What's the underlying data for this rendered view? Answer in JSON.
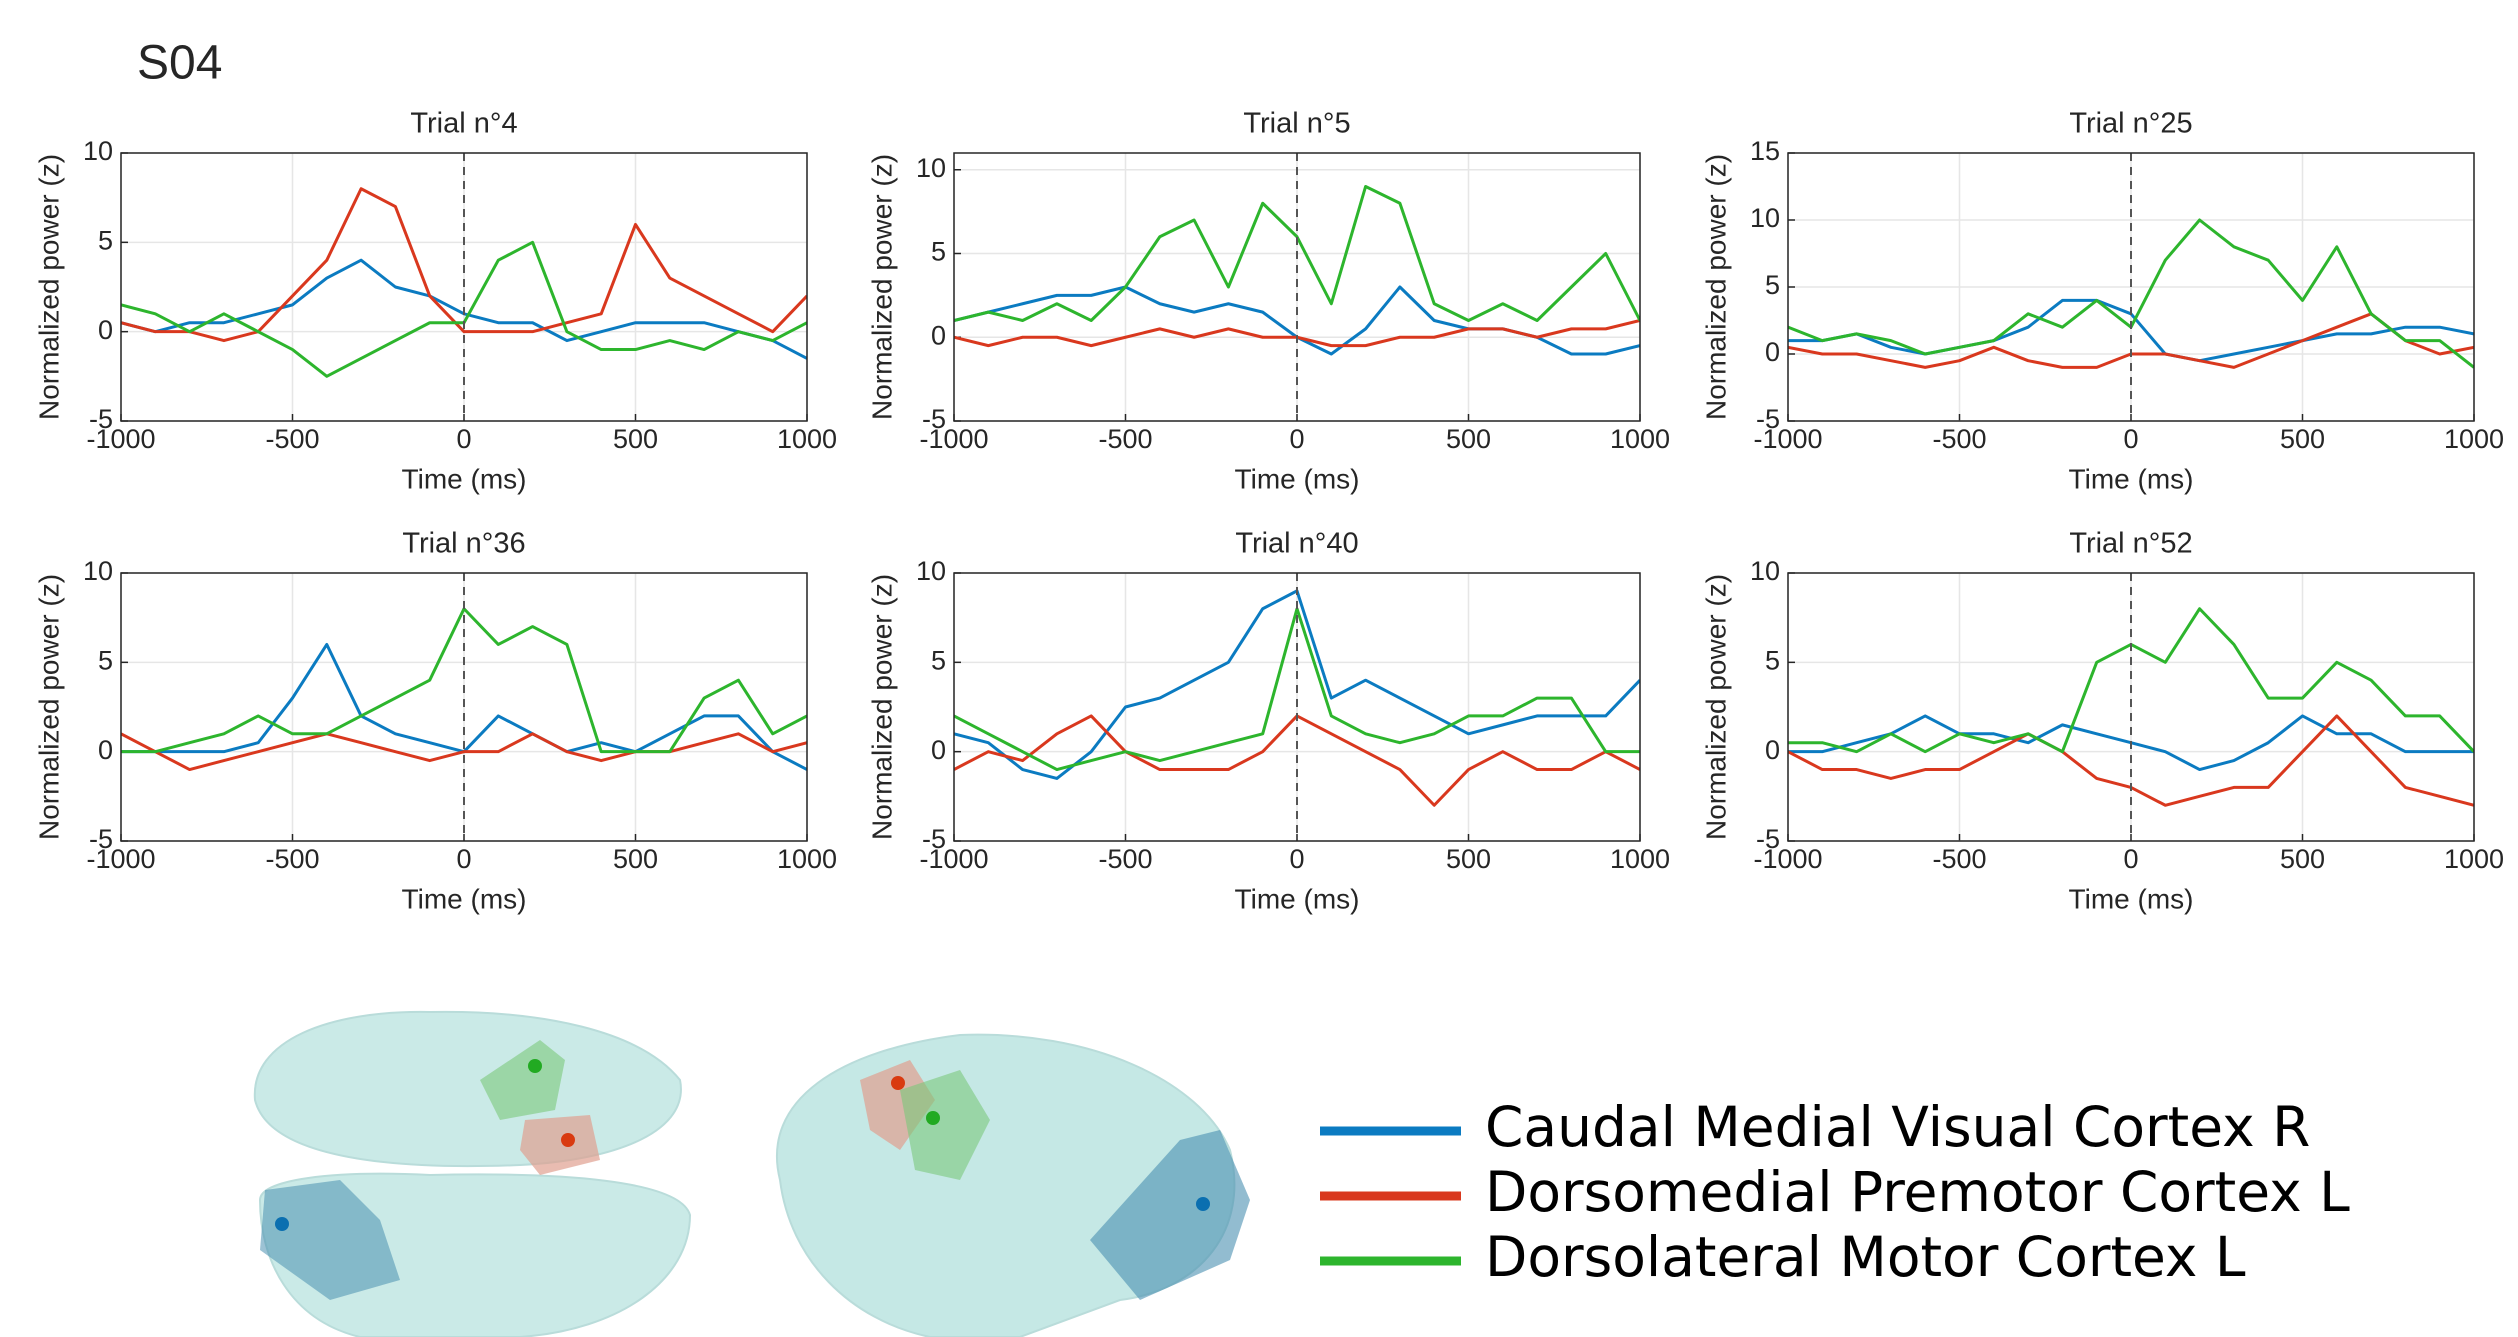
{
  "panel_label": "S04",
  "chart_data": [
    {
      "type": "line",
      "title": "Trial n°4",
      "xlabel": "Time (ms)",
      "ylabel": "Normalized power (z)",
      "x": [
        -1000,
        -900,
        -800,
        -700,
        -600,
        -500,
        -400,
        -300,
        -200,
        -100,
        0,
        100,
        200,
        300,
        400,
        500,
        600,
        700,
        800,
        900,
        1000
      ],
      "xlim": [
        -1000,
        1000
      ],
      "xticks": [
        -1000,
        -500,
        0,
        500,
        1000
      ],
      "ylim": [
        -5,
        10
      ],
      "yticks": [
        -5,
        0,
        5,
        10
      ],
      "grid": true,
      "series": [
        {
          "name": "Caudal Medial Visual Cortex R",
          "color": "#0b7bc1",
          "values": [
            0.5,
            0,
            0.5,
            0.5,
            1,
            1.5,
            3,
            4,
            2.5,
            2,
            1,
            0.5,
            0.5,
            -0.5,
            0,
            0.5,
            0.5,
            0.5,
            0,
            -0.5,
            -1.5
          ]
        },
        {
          "name": "Dorsomedial Premotor Cortex L",
          "color": "#d9381e",
          "values": [
            0.5,
            0,
            0,
            -0.5,
            0,
            2,
            4,
            8,
            7,
            2,
            0,
            0,
            0,
            0.5,
            1,
            6,
            3,
            2,
            1,
            0,
            2
          ]
        },
        {
          "name": "Dorsolateral Motor Cortex L",
          "color": "#2db52d",
          "values": [
            1.5,
            1,
            0,
            1,
            0,
            -1,
            -2.5,
            -1.5,
            -0.5,
            0.5,
            0.5,
            4,
            5,
            0,
            -1,
            -1,
            -0.5,
            -1,
            0,
            -0.5,
            0.5
          ]
        }
      ]
    },
    {
      "type": "line",
      "title": "Trial n°5",
      "xlabel": "Time (ms)",
      "ylabel": "Normalized power (z)",
      "x": [
        -1000,
        -900,
        -800,
        -700,
        -600,
        -500,
        -400,
        -300,
        -200,
        -100,
        0,
        100,
        200,
        300,
        400,
        500,
        600,
        700,
        800,
        900,
        1000
      ],
      "xlim": [
        -1000,
        1000
      ],
      "xticks": [
        -1000,
        -500,
        0,
        500,
        1000
      ],
      "ylim": [
        -5,
        11
      ],
      "yticks": [
        -5,
        0,
        5,
        10
      ],
      "grid": true,
      "series": [
        {
          "color": "#0b7bc1",
          "values": [
            1,
            1.5,
            2,
            2.5,
            2.5,
            3,
            2,
            1.5,
            2,
            1.5,
            0,
            -1,
            0.5,
            3,
            1,
            0.5,
            0.5,
            0,
            -1,
            -1,
            -0.5
          ]
        },
        {
          "color": "#d9381e",
          "values": [
            0,
            -0.5,
            0,
            0,
            -0.5,
            0,
            0.5,
            0,
            0.5,
            0,
            0,
            -0.5,
            -0.5,
            0,
            0,
            0.5,
            0.5,
            0,
            0.5,
            0.5,
            1
          ]
        },
        {
          "color": "#2db52d",
          "values": [
            1,
            1.5,
            1,
            2,
            1,
            3,
            6,
            7,
            3,
            8,
            6,
            2,
            9,
            8,
            2,
            1,
            2,
            1,
            3,
            5,
            1
          ]
        }
      ]
    },
    {
      "type": "line",
      "title": "Trial n°25",
      "xlabel": "Time (ms)",
      "ylabel": "Normalized power (z)",
      "x": [
        -1000,
        -900,
        -800,
        -700,
        -600,
        -500,
        -400,
        -300,
        -200,
        -100,
        0,
        100,
        200,
        300,
        400,
        500,
        600,
        700,
        800,
        900,
        1000
      ],
      "xlim": [
        -1000,
        1000
      ],
      "xticks": [
        -1000,
        -500,
        0,
        500,
        1000
      ],
      "ylim": [
        -5,
        15
      ],
      "yticks": [
        -5,
        0,
        5,
        10,
        15
      ],
      "grid": true,
      "series": [
        {
          "color": "#0b7bc1",
          "values": [
            1,
            1,
            1.5,
            0.5,
            0,
            0.5,
            1,
            2,
            4,
            4,
            3,
            0,
            -0.5,
            0,
            0.5,
            1,
            1.5,
            1.5,
            2,
            2,
            1.5
          ]
        },
        {
          "color": "#d9381e",
          "values": [
            0.5,
            0,
            0,
            -0.5,
            -1,
            -0.5,
            0.5,
            -0.5,
            -1,
            -1,
            0,
            0,
            -0.5,
            -1,
            0,
            1,
            2,
            3,
            1,
            0,
            0.5
          ]
        },
        {
          "color": "#2db52d",
          "values": [
            2,
            1,
            1.5,
            1,
            0,
            0.5,
            1,
            3,
            2,
            4,
            2,
            7,
            10,
            8,
            7,
            4,
            8,
            3,
            1,
            1,
            -1
          ]
        }
      ]
    },
    {
      "type": "line",
      "title": "Trial n°36",
      "xlabel": "Time (ms)",
      "ylabel": "Normalized power (z)",
      "x": [
        -1000,
        -900,
        -800,
        -700,
        -600,
        -500,
        -400,
        -300,
        -200,
        -100,
        0,
        100,
        200,
        300,
        400,
        500,
        600,
        700,
        800,
        900,
        1000
      ],
      "xlim": [
        -1000,
        1000
      ],
      "xticks": [
        -1000,
        -500,
        0,
        500,
        1000
      ],
      "ylim": [
        -5,
        10
      ],
      "yticks": [
        -5,
        0,
        5,
        10
      ],
      "grid": true,
      "series": [
        {
          "color": "#0b7bc1",
          "values": [
            0,
            0,
            0,
            0,
            0.5,
            3,
            6,
            2,
            1,
            0.5,
            0,
            2,
            1,
            0,
            0.5,
            0,
            1,
            2,
            2,
            0,
            -1
          ]
        },
        {
          "color": "#d9381e",
          "values": [
            1,
            0,
            -1,
            -0.5,
            0,
            0.5,
            1,
            0.5,
            0,
            -0.5,
            0,
            0,
            1,
            0,
            -0.5,
            0,
            0,
            0.5,
            1,
            0,
            0.5
          ]
        },
        {
          "color": "#2db52d",
          "values": [
            0,
            0,
            0.5,
            1,
            2,
            1,
            1,
            2,
            3,
            4,
            8,
            6,
            7,
            6,
            0,
            0,
            0,
            3,
            4,
            1,
            2
          ]
        }
      ]
    },
    {
      "type": "line",
      "title": "Trial n°40",
      "xlabel": "Time (ms)",
      "ylabel": "Normalized power (z)",
      "x": [
        -1000,
        -900,
        -800,
        -700,
        -600,
        -500,
        -400,
        -300,
        -200,
        -100,
        0,
        100,
        200,
        300,
        400,
        500,
        600,
        700,
        800,
        900,
        1000
      ],
      "xlim": [
        -1000,
        1000
      ],
      "xticks": [
        -1000,
        -500,
        0,
        500,
        1000
      ],
      "ylim": [
        -5,
        10
      ],
      "yticks": [
        -5,
        0,
        5,
        10
      ],
      "grid": true,
      "series": [
        {
          "color": "#0b7bc1",
          "values": [
            1,
            0.5,
            -1,
            -1.5,
            0,
            2.5,
            3,
            4,
            5,
            8,
            9,
            3,
            4,
            3,
            2,
            1,
            1.5,
            2,
            2,
            2,
            4
          ]
        },
        {
          "color": "#d9381e",
          "values": [
            -1,
            0,
            -0.5,
            1,
            2,
            0,
            -1,
            -1,
            -1,
            0,
            2,
            1,
            0,
            -1,
            -3,
            -1,
            0,
            -1,
            -1,
            0,
            -1
          ]
        },
        {
          "color": "#2db52d",
          "values": [
            2,
            1,
            0,
            -1,
            -0.5,
            0,
            -0.5,
            0,
            0.5,
            1,
            8,
            2,
            1,
            0.5,
            1,
            2,
            2,
            3,
            3,
            0,
            0
          ]
        }
      ]
    },
    {
      "type": "line",
      "title": "Trial n°52",
      "xlabel": "Time (ms)",
      "ylabel": "Normalized power (z)",
      "x": [
        -1000,
        -900,
        -800,
        -700,
        -600,
        -500,
        -400,
        -300,
        -200,
        -100,
        0,
        100,
        200,
        300,
        400,
        500,
        600,
        700,
        800,
        900,
        1000
      ],
      "xlim": [
        -1000,
        1000
      ],
      "xticks": [
        -1000,
        -500,
        0,
        500,
        1000
      ],
      "ylim": [
        -5,
        10
      ],
      "yticks": [
        -5,
        0,
        5,
        10
      ],
      "grid": true,
      "series": [
        {
          "color": "#0b7bc1",
          "values": [
            0,
            0,
            0.5,
            1,
            2,
            1,
            1,
            0.5,
            1.5,
            1,
            0.5,
            0,
            -1,
            -0.5,
            0.5,
            2,
            1,
            1,
            0,
            0,
            0
          ]
        },
        {
          "color": "#d9381e",
          "values": [
            0,
            -1,
            -1,
            -1.5,
            -1,
            -1,
            0,
            1,
            0,
            -1.5,
            -2,
            -3,
            -2.5,
            -2,
            -2,
            0,
            2,
            0,
            -2,
            -2.5,
            -3
          ]
        },
        {
          "color": "#2db52d",
          "values": [
            0.5,
            0.5,
            0,
            1,
            0,
            1,
            0.5,
            1,
            0,
            5,
            6,
            5,
            8,
            6,
            3,
            3,
            5,
            4,
            2,
            2,
            0
          ]
        }
      ]
    }
  ]
}
